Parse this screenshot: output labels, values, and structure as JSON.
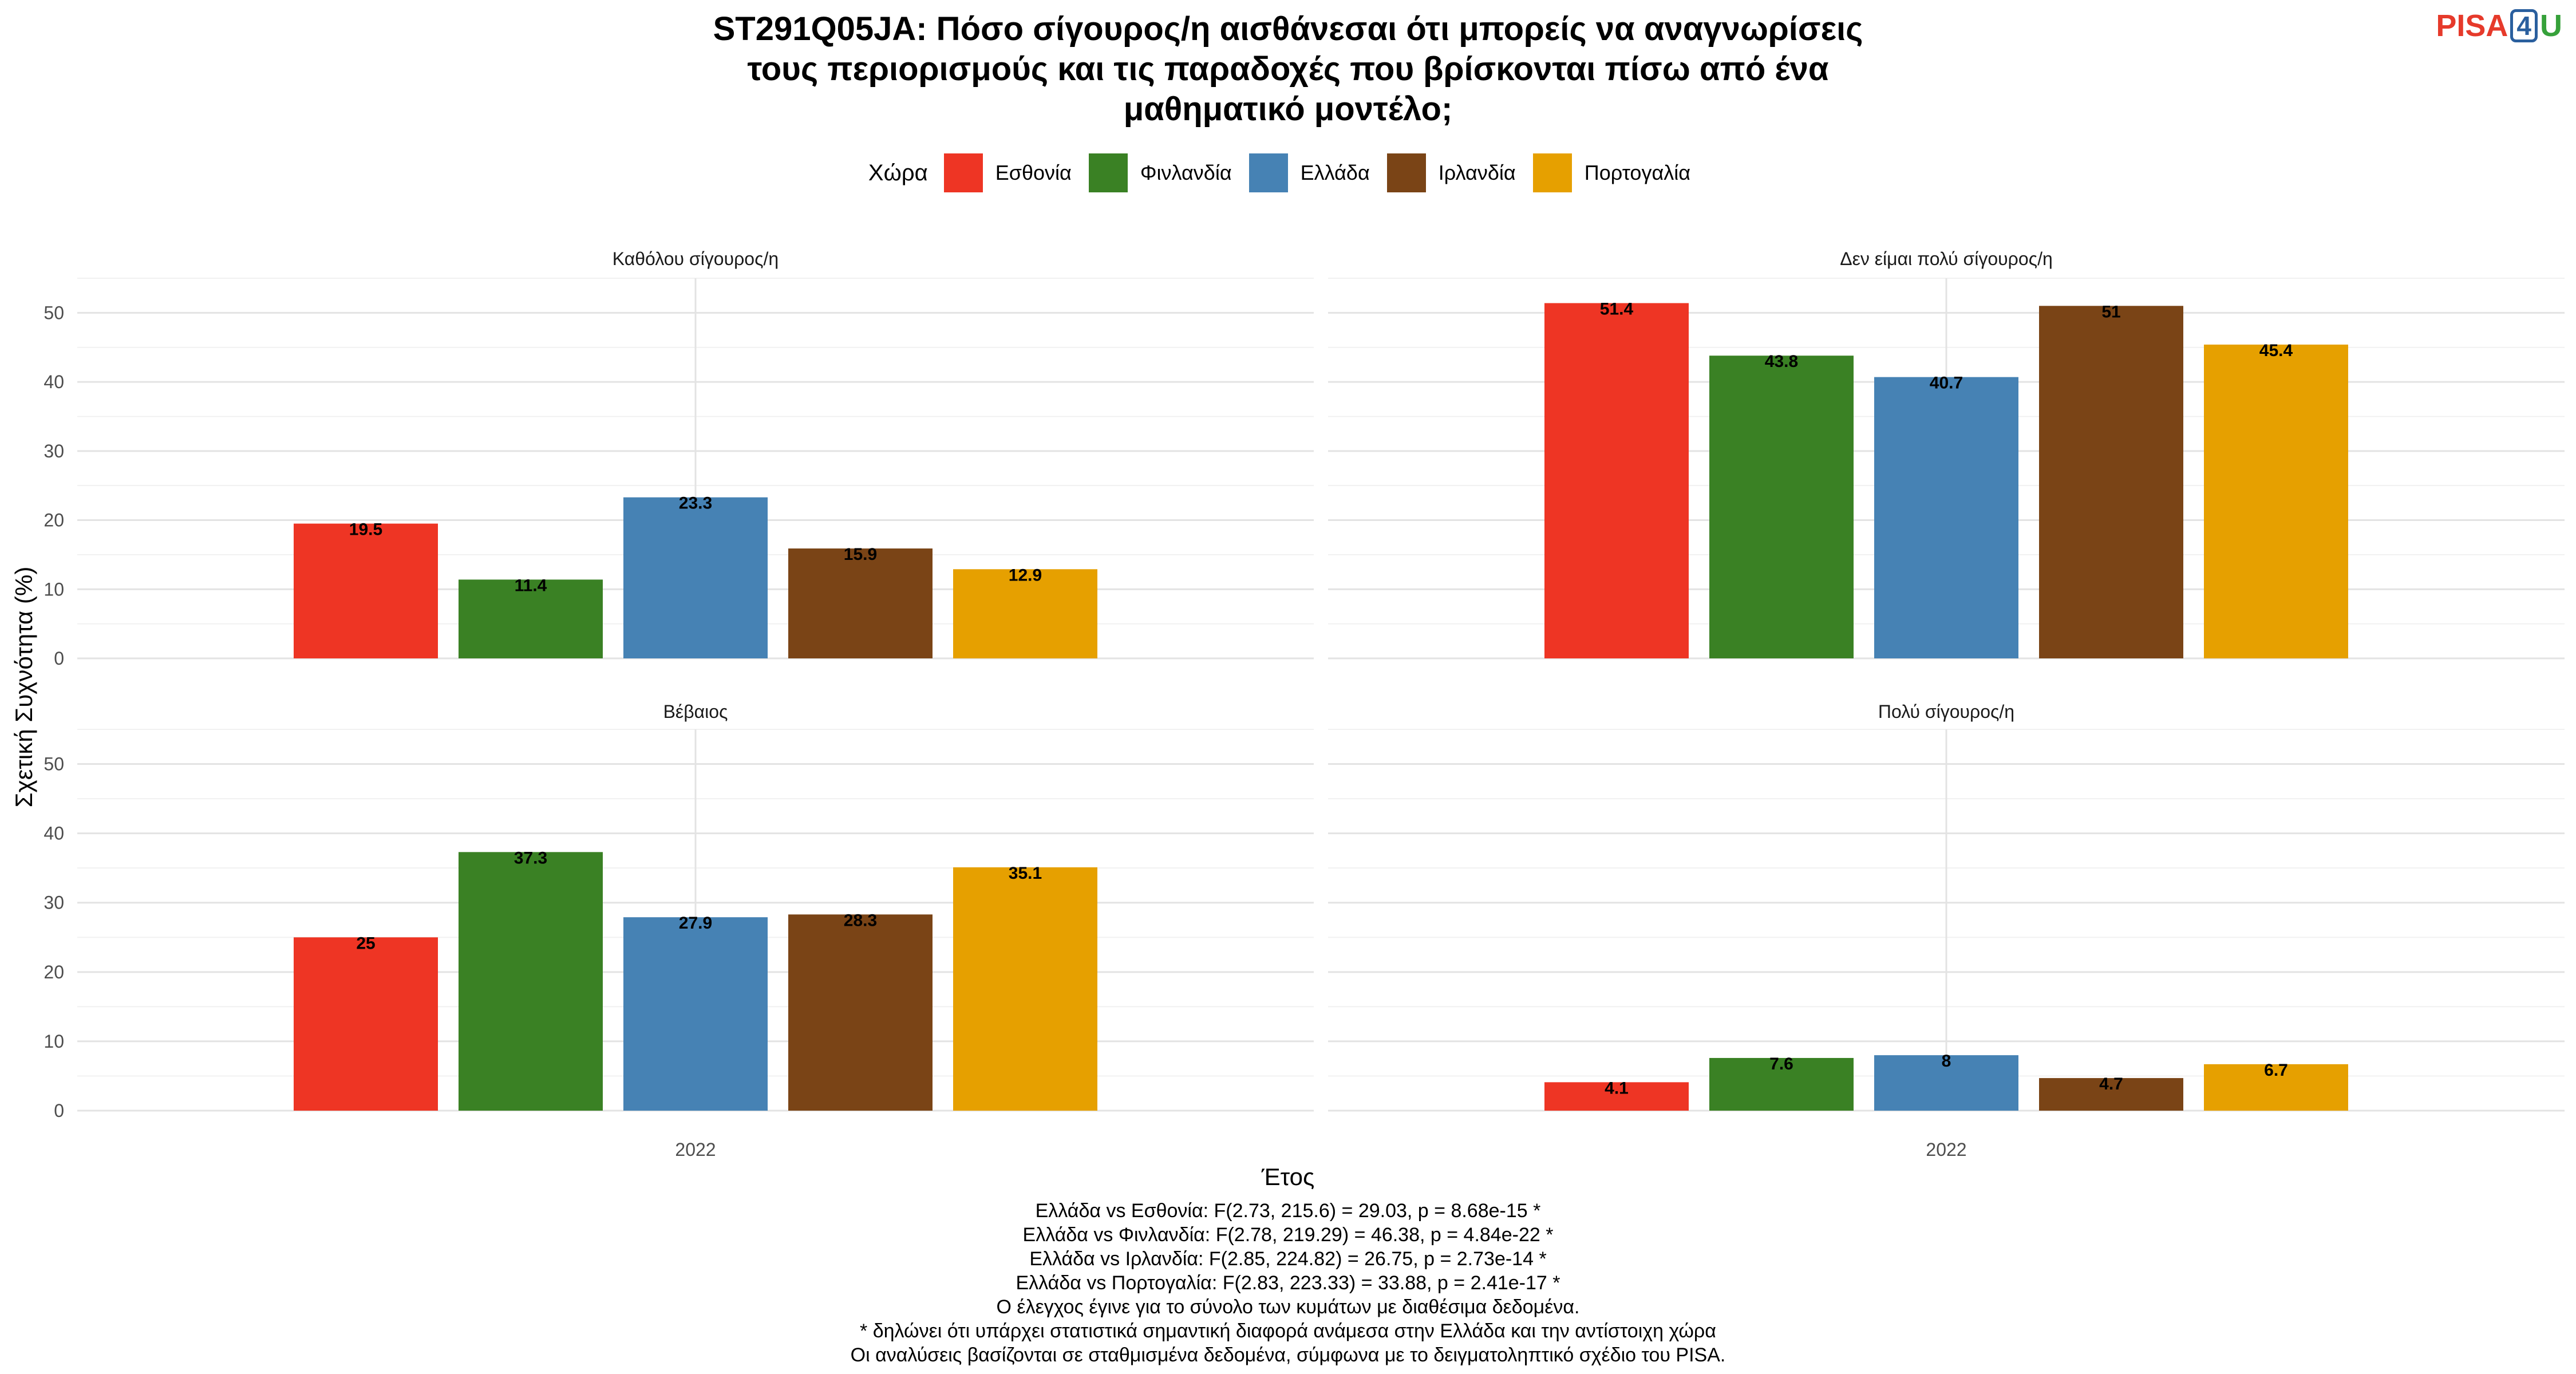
{
  "title_lines": [
    "ST291Q05JA: Πόσο σίγουρος/η αισθάνεσαι ότι μπορείς να αναγνωρίσεις",
    "τους περιορισμούς και τις παραδοχές που βρίσκονται πίσω από ένα",
    "μαθηματικό μοντέλο;"
  ],
  "logo": {
    "part1": "PISA",
    "part2": "4",
    "part3": "U"
  },
  "legend_title": "Χώρα",
  "colors": {
    "Εσθονία": "#EE3524",
    "Φινλανδία": "#3A8124",
    "Ελλάδα": "#4682B4",
    "Ιρλανδία": "#7A4416",
    "Πορτογαλία": "#E6A000"
  },
  "chart_data": {
    "type": "bar",
    "xlabel": "Έτος",
    "ylabel": "Σχετική Συχνότητα (%)",
    "ylim": [
      0,
      55
    ],
    "y_ticks": [
      0,
      10,
      20,
      30,
      40,
      50
    ],
    "x_category": "2022",
    "series_names": [
      "Εσθονία",
      "Φινλανδία",
      "Ελλάδα",
      "Ιρλανδία",
      "Πορτογαλία"
    ],
    "legend_position": "top",
    "grid": true,
    "facets": [
      {
        "name": "Καθόλου σίγουρος/η",
        "values": [
          19.5,
          11.4,
          23.3,
          15.9,
          12.9
        ]
      },
      {
        "name": "Δεν είμαι πολύ σίγουρος/η",
        "values": [
          51.4,
          43.8,
          40.7,
          51,
          45.4
        ]
      },
      {
        "name": "Βέβαιος",
        "values": [
          25,
          37.3,
          27.9,
          28.3,
          35.1
        ]
      },
      {
        "name": "Πολύ σίγουρος/η",
        "values": [
          4.1,
          7.6,
          8,
          4.7,
          6.7
        ]
      }
    ]
  },
  "notes": [
    "Ελλάδα vs Εσθονία: F(2.73, 215.6) = 29.03, p = 8.68e-15 *",
    "Ελλάδα vs Φινλανδία: F(2.78, 219.29) = 46.38, p = 4.84e-22 *",
    "Ελλάδα vs Ιρλανδία: F(2.85, 224.82) = 26.75, p = 2.73e-14 *",
    "Ελλάδα vs Πορτογαλία: F(2.83, 223.33) = 33.88, p = 2.41e-17 *",
    "Ο έλεγχος έγινε για το σύνολο των κυμάτων με διαθέσιμα δεδομένα.",
    "* δηλώνει ότι υπάρχει στατιστικά σημαντική διαφορά ανάμεσα στην Ελλάδα και την αντίστοιχη χώρα",
    "Οι αναλύσεις βασίζονται σε σταθμισμένα δεδομένα, σύμφωνα με το δειγματοληπτικό σχέδιο του PISA."
  ]
}
